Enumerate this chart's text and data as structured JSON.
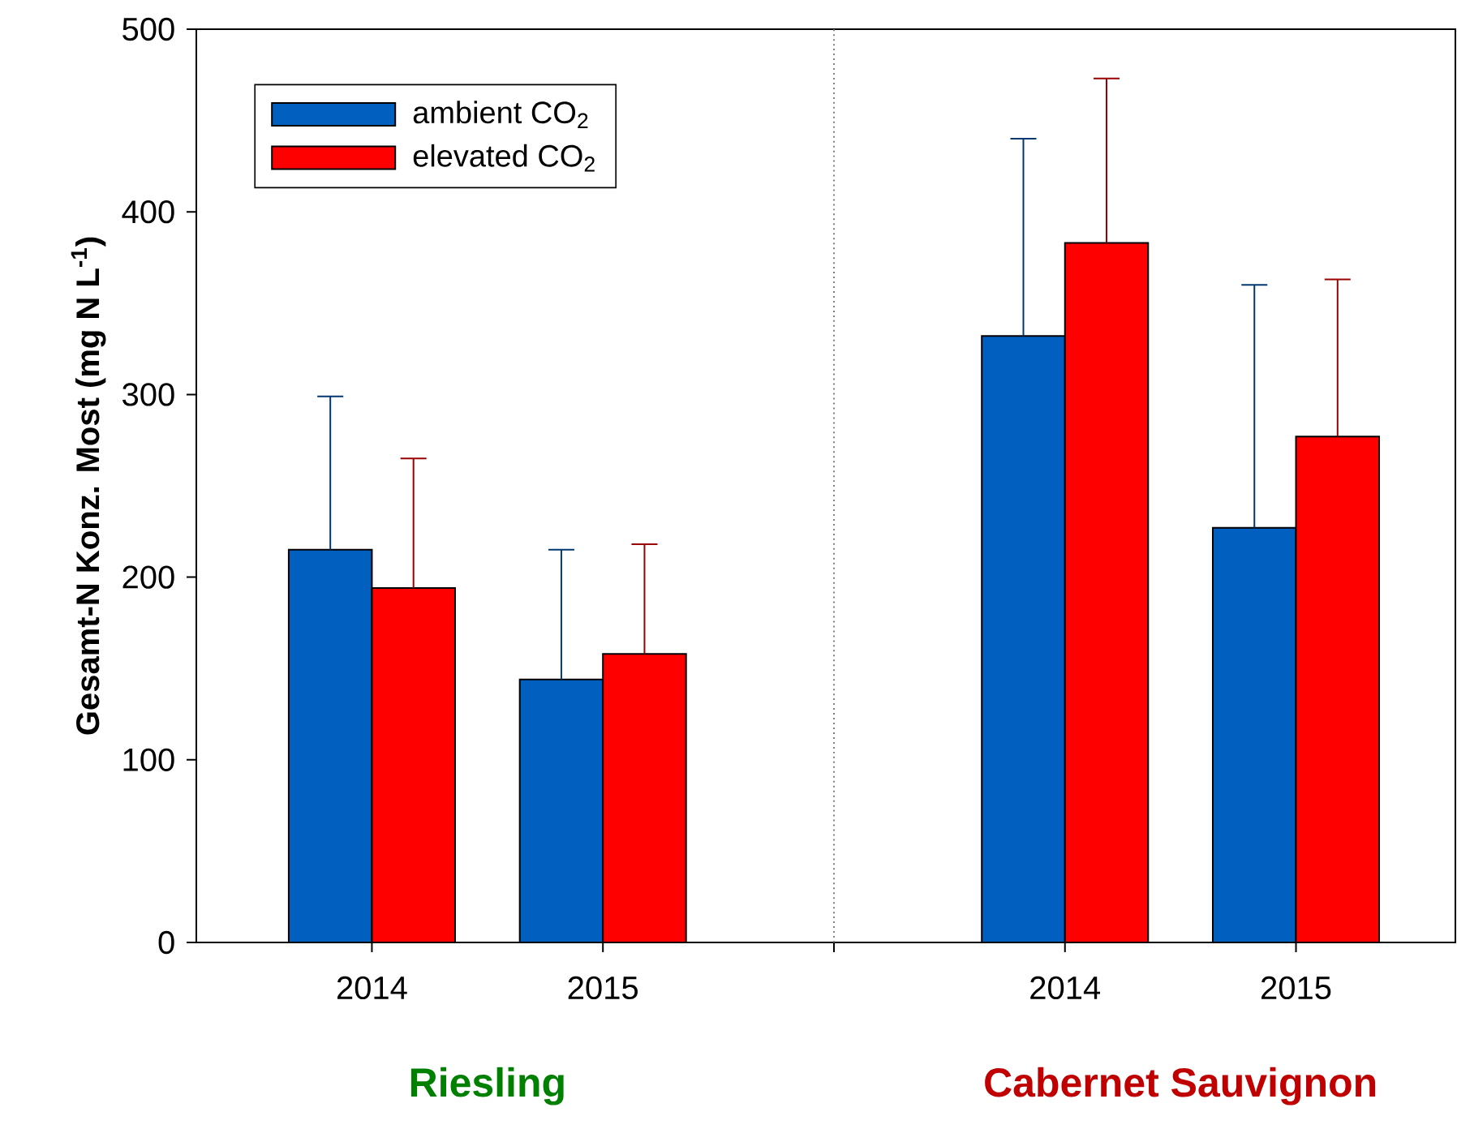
{
  "chart_data": {
    "type": "bar",
    "ylabel": "Gesamt-N Konz. Most (mg N L$^{-1}$)",
    "categories": [
      "2014",
      "2015",
      null,
      "2014",
      "2015"
    ],
    "series": [
      {
        "name": "ambient CO$_{2}$",
        "color": "#005fbf",
        "values": [
          215,
          144,
          null,
          332,
          227
        ],
        "errors": [
          [
            215,
            299
          ],
          [
            144,
            215
          ],
          null,
          [
            332,
            440
          ],
          [
            227,
            360
          ]
        ]
      },
      {
        "name": "elevated CO$_{2}$",
        "color": "#ff0000",
        "values": [
          194,
          158,
          null,
          383,
          277
        ],
        "errors": [
          [
            194,
            265
          ],
          [
            158,
            218
          ],
          null,
          [
            383,
            473
          ],
          [
            277,
            363
          ]
        ]
      }
    ],
    "ylim": [
      0,
      500
    ],
    "yticks": [
      0,
      100,
      200,
      300,
      400,
      500
    ],
    "annotations": [
      "Riesling",
      "Cabernet Sauvignon"
    ],
    "legend": "top left"
  }
}
